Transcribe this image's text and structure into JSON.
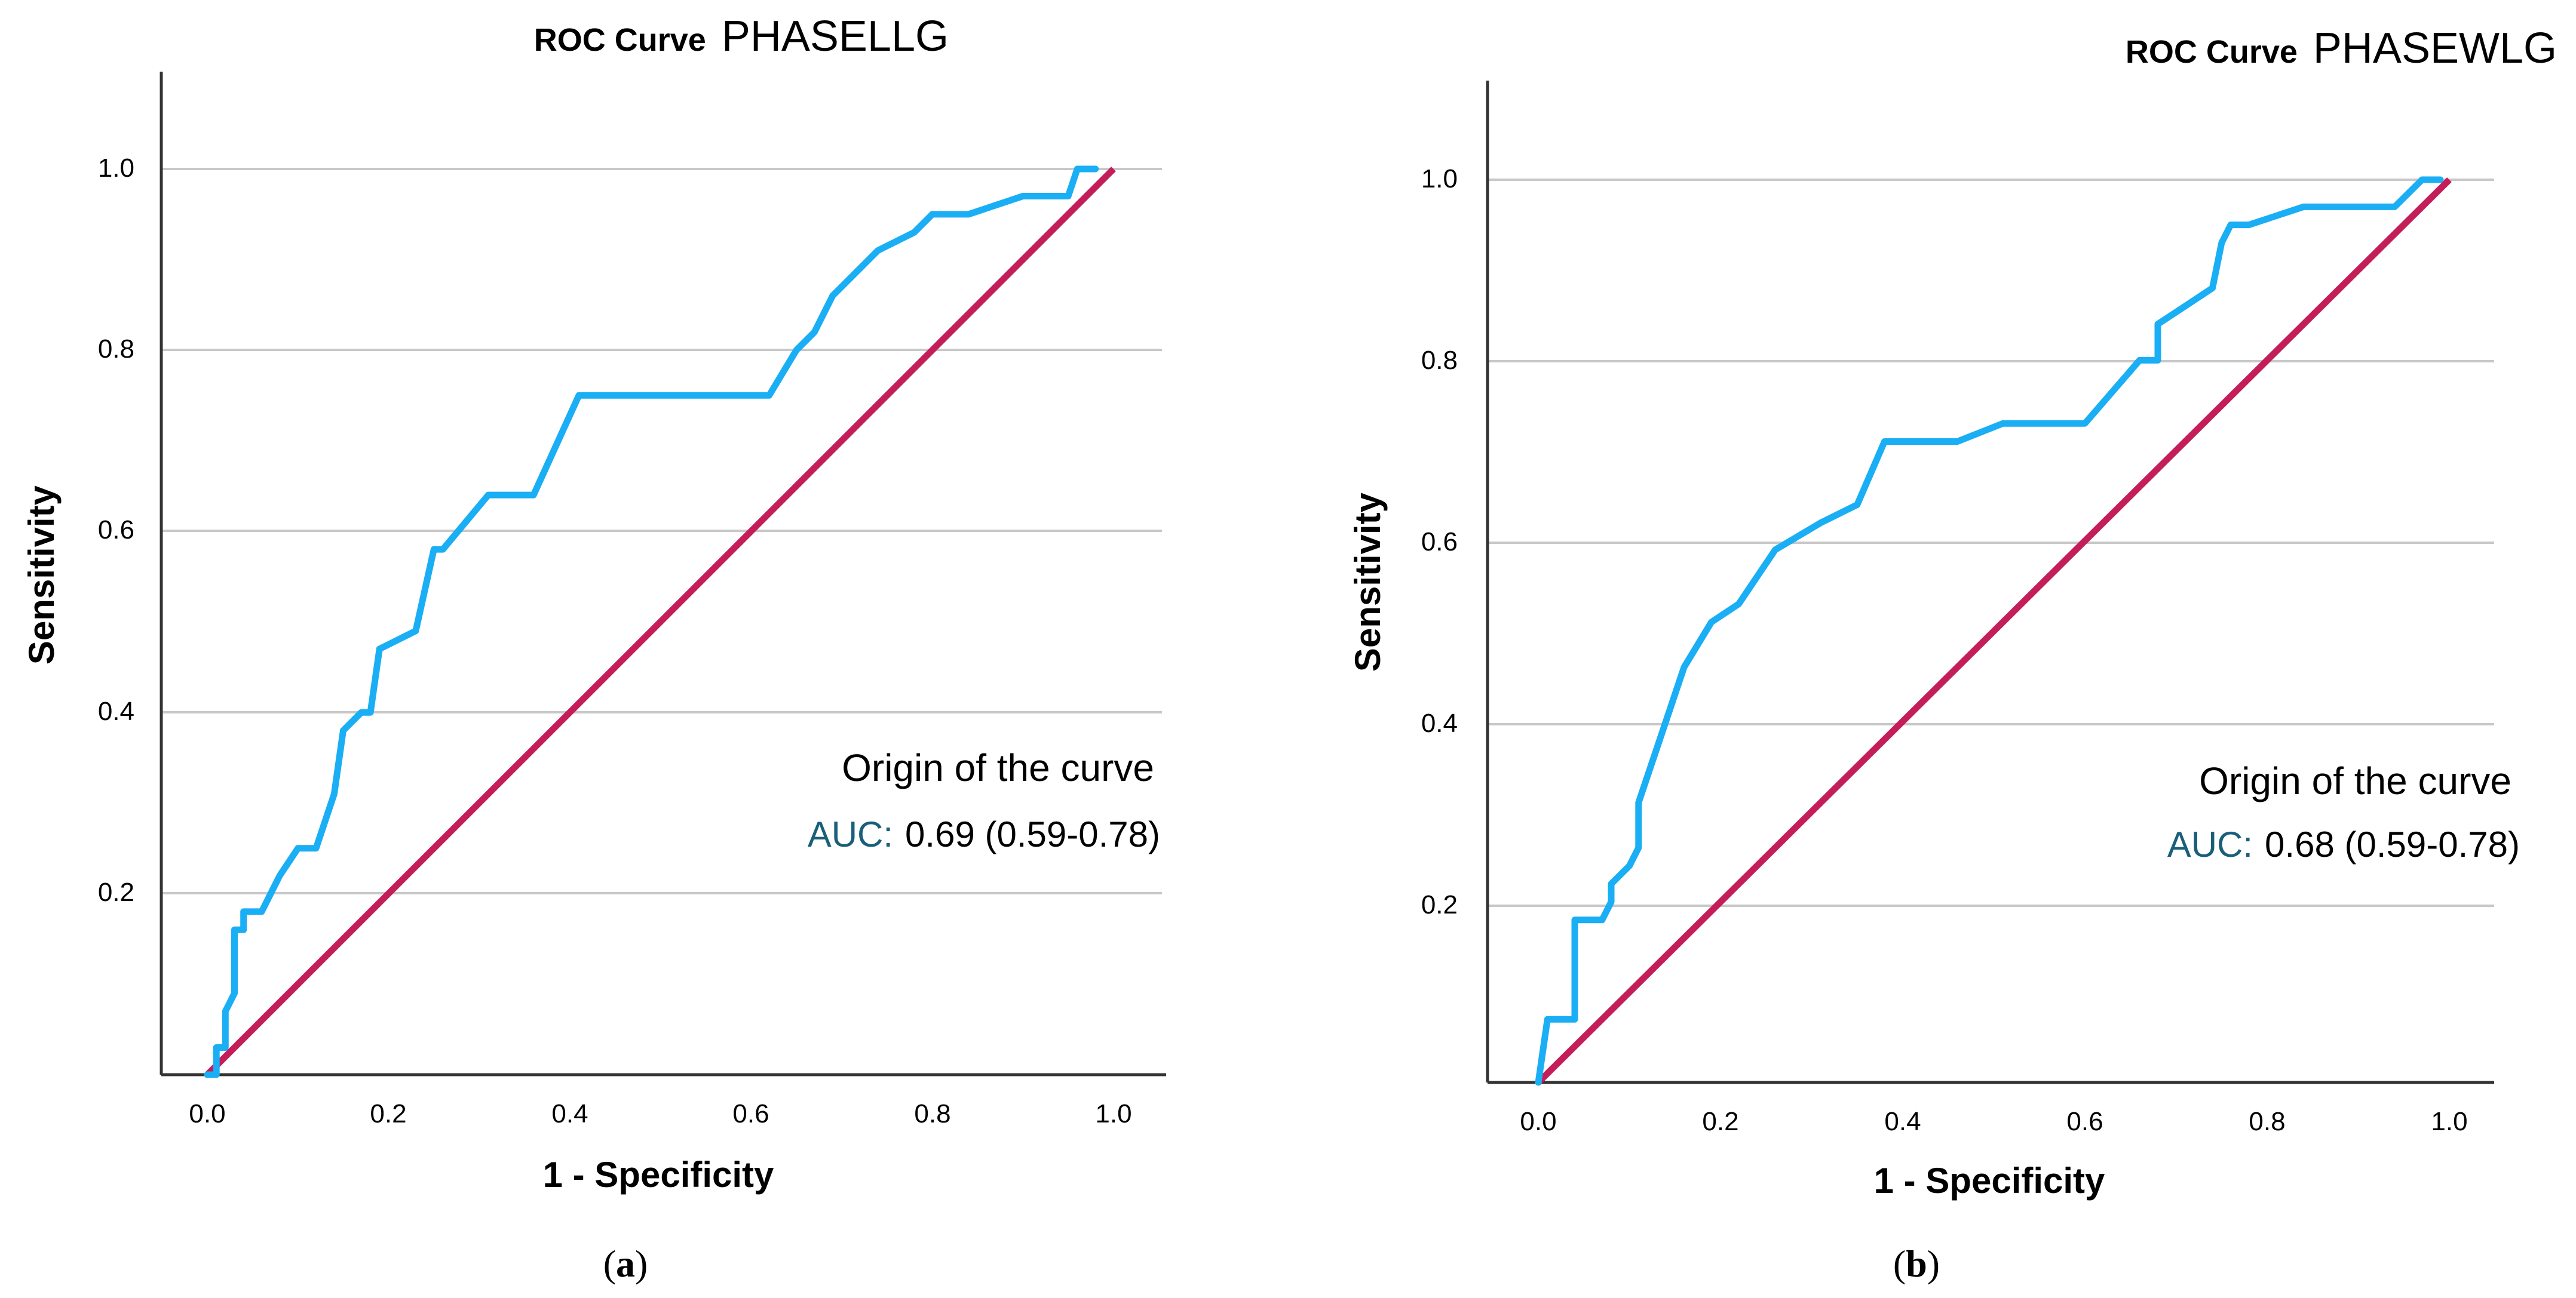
{
  "colors": {
    "curve": "#1aaef5",
    "reference": "#c41e5a",
    "grid": "#c8c8c8",
    "axis": "#333333",
    "auc_label": "#1a5f7a"
  },
  "chart_data": [
    {
      "type": "line",
      "title_prefix": "ROC Curve",
      "title_var": "PHASELLG",
      "xlabel": "1 - Specificity",
      "ylabel": "Sensitivity",
      "xlim": [
        0,
        1
      ],
      "ylim": [
        0,
        1
      ],
      "x_ticks": [
        "0.0",
        "0.2",
        "0.4",
        "0.6",
        "0.8",
        "1.0"
      ],
      "y_ticks": [
        "0.2",
        "0.4",
        "0.6",
        "0.8",
        "1.0"
      ],
      "grid": "horizontal",
      "legend_title": "Origin of the curve",
      "auc_label": "AUC:",
      "auc_value": "0.69 (0.59-0.78)",
      "caption_open": "(",
      "caption_letter": "a",
      "caption_close": ")",
      "series": [
        {
          "role": "roc",
          "x": [
            0.0,
            0.01,
            0.01,
            0.02,
            0.02,
            0.03,
            0.03,
            0.04,
            0.04,
            0.06,
            0.08,
            0.1,
            0.12,
            0.14,
            0.15,
            0.15,
            0.17,
            0.18,
            0.19,
            0.23,
            0.25,
            0.26,
            0.31,
            0.36,
            0.41,
            0.62,
            0.65,
            0.67,
            0.69,
            0.74,
            0.78,
            0.8,
            0.84,
            0.9,
            0.95,
            0.96,
            0.98
          ],
          "y": [
            0.0,
            0.0,
            0.03,
            0.03,
            0.07,
            0.09,
            0.16,
            0.16,
            0.18,
            0.18,
            0.22,
            0.25,
            0.25,
            0.31,
            0.38,
            0.38,
            0.4,
            0.4,
            0.47,
            0.49,
            0.58,
            0.58,
            0.64,
            0.64,
            0.75,
            0.75,
            0.8,
            0.82,
            0.86,
            0.91,
            0.93,
            0.95,
            0.95,
            0.97,
            0.97,
            1.0,
            1.0
          ]
        },
        {
          "role": "reference",
          "x": [
            0,
            1
          ],
          "y": [
            0,
            1
          ]
        }
      ]
    },
    {
      "type": "line",
      "title_prefix": "ROC Curve",
      "title_var": "PHASEWLG",
      "xlabel": "1 - Specificity",
      "ylabel": "Sensitivity",
      "xlim": [
        0,
        1
      ],
      "ylim": [
        0,
        1
      ],
      "x_ticks": [
        "0.0",
        "0.2",
        "0.4",
        "0.6",
        "0.8",
        "1.0"
      ],
      "y_ticks": [
        "0.2",
        "0.4",
        "0.6",
        "0.8",
        "1.0"
      ],
      "grid": "horizontal",
      "legend_title": "Origin of the curve",
      "auc_label": "AUC:",
      "auc_value": "0.68 (0.59-0.78)",
      "caption_open": "(",
      "caption_letter": "b",
      "caption_close": ")",
      "series": [
        {
          "role": "roc",
          "x": [
            0.0,
            0.01,
            0.01,
            0.04,
            0.04,
            0.07,
            0.08,
            0.08,
            0.1,
            0.11,
            0.11,
            0.13,
            0.16,
            0.19,
            0.22,
            0.26,
            0.31,
            0.35,
            0.38,
            0.46,
            0.51,
            0.6,
            0.66,
            0.68,
            0.68,
            0.71,
            0.74,
            0.75,
            0.76,
            0.78,
            0.84,
            0.94,
            0.97,
            0.99
          ],
          "y": [
            0.0,
            0.07,
            0.07,
            0.07,
            0.18,
            0.18,
            0.2,
            0.22,
            0.24,
            0.26,
            0.31,
            0.37,
            0.46,
            0.51,
            0.53,
            0.59,
            0.62,
            0.64,
            0.71,
            0.71,
            0.73,
            0.73,
            0.8,
            0.8,
            0.84,
            0.86,
            0.88,
            0.93,
            0.95,
            0.95,
            0.97,
            0.97,
            1.0,
            1.0
          ]
        },
        {
          "role": "reference",
          "x": [
            0,
            1
          ],
          "y": [
            0,
            1
          ]
        }
      ]
    }
  ]
}
